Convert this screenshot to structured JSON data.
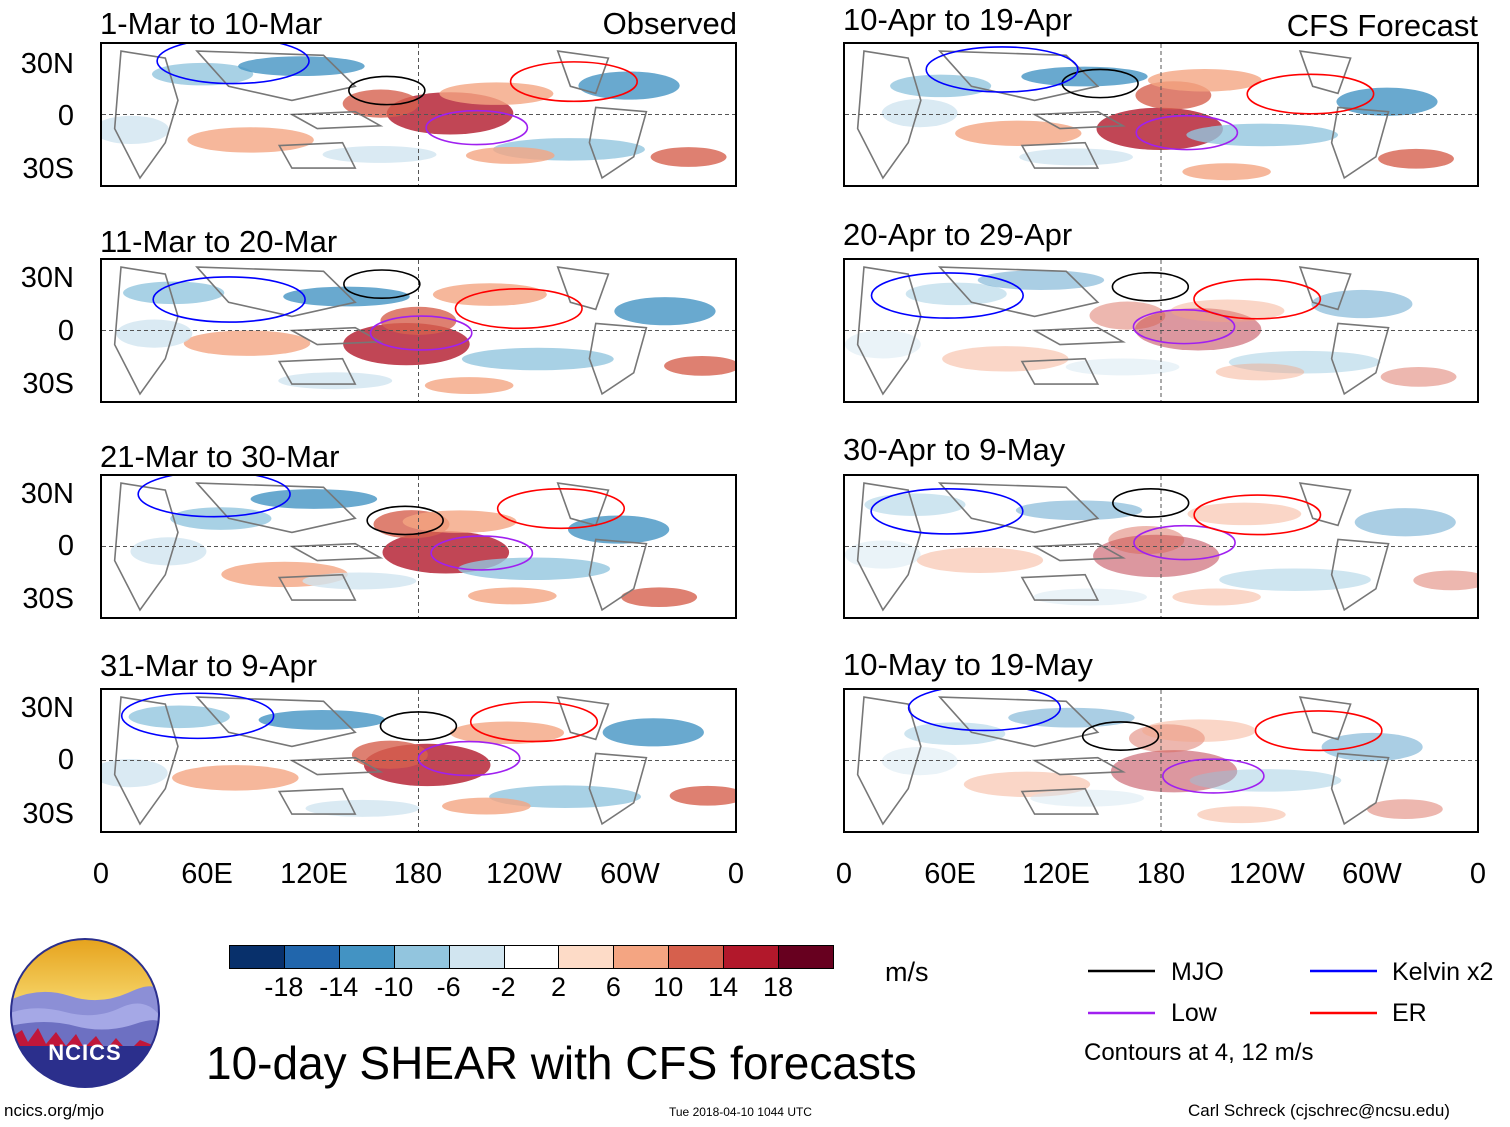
{
  "panels": [
    {
      "title": "1-Mar to 10-Mar",
      "tag": "Observed"
    },
    {
      "title": "11-Mar to 20-Mar",
      "tag": ""
    },
    {
      "title": "21-Mar to 30-Mar",
      "tag": ""
    },
    {
      "title": "31-Mar to 9-Apr",
      "tag": ""
    },
    {
      "title": "10-Apr to 19-Apr",
      "tag": "CFS Forecast"
    },
    {
      "title": "20-Apr to 29-Apr",
      "tag": ""
    },
    {
      "title": "30-Apr to 9-May",
      "tag": ""
    },
    {
      "title": "10-May to 19-May",
      "tag": ""
    }
  ],
  "yaxis": {
    "labels": [
      "30N",
      "0",
      "30S"
    ]
  },
  "xaxis": {
    "labels": [
      "0",
      "60E",
      "120E",
      "180",
      "120W",
      "60W",
      "0"
    ]
  },
  "colorbar": {
    "colors": [
      "#08306b",
      "#2166ac",
      "#4393c3",
      "#92c5de",
      "#d1e5f0",
      "#ffffff",
      "#fddbc7",
      "#f4a582",
      "#d6604d",
      "#b2182b",
      "#67001f"
    ],
    "labels": [
      "-18",
      "-14",
      "-10",
      "-6",
      "-2",
      "2",
      "6",
      "10",
      "14",
      "18"
    ],
    "units": "m/s"
  },
  "legend": {
    "items": [
      {
        "label": "MJO",
        "color": "#000000"
      },
      {
        "label": "Low",
        "color": "#a020f0"
      },
      {
        "label": "Kelvin x2",
        "color": "#0000ff"
      },
      {
        "label": "ER",
        "color": "#ff0000"
      }
    ],
    "note": "Contours at 4, 12 m/s"
  },
  "title": "10-day SHEAR with CFS forecasts",
  "logo": {
    "text": "NCICS"
  },
  "footer": {
    "website": "ncics.org/mjo",
    "timestamp": "Tue 2018-04-10 1044 UTC",
    "credit": "Carl Schreck (cjschrec@ncsu.edu)"
  },
  "colors": {
    "land": "#777777",
    "grid": "#555555"
  }
}
